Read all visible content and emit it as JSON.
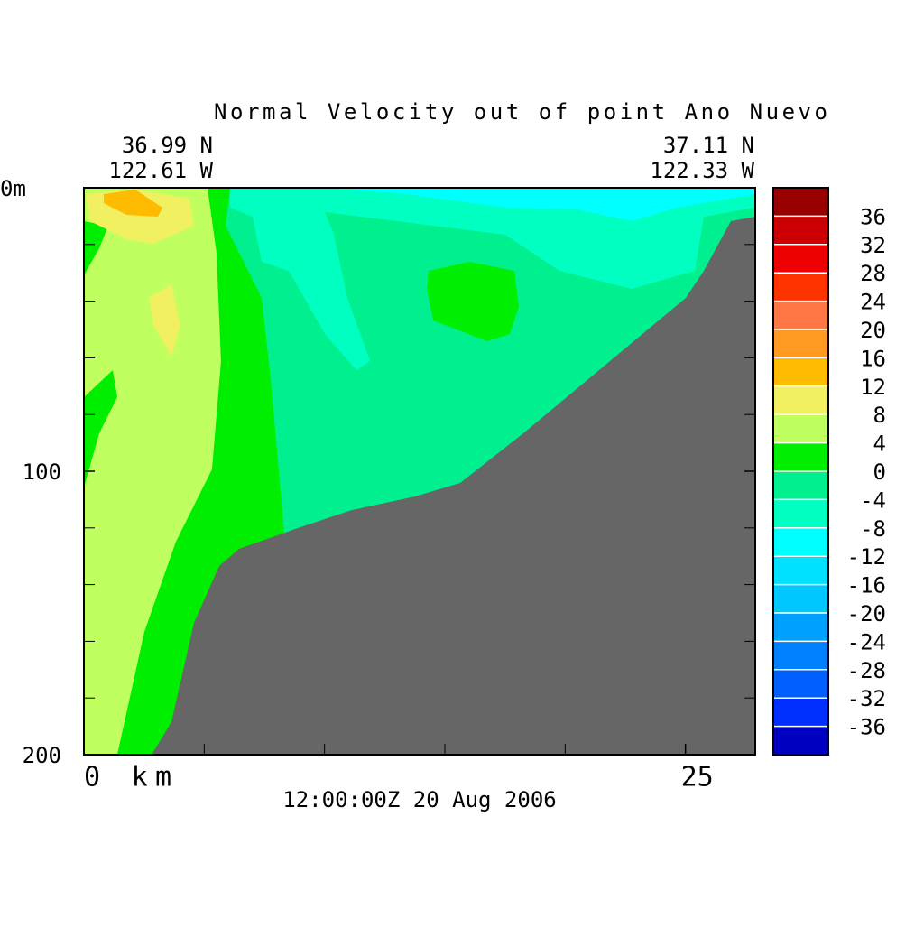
{
  "chart_data": {
    "type": "contour",
    "title": "Normal Velocity out of point Ano Nuevo",
    "subtitle": "12:00:00Z  20 Aug 2006",
    "left_corner": [
      "36.99 N",
      "122.61 W"
    ],
    "right_corner": [
      "37.11 N",
      "122.33 W"
    ],
    "xlim": [
      0,
      27.9
    ],
    "xticks": [
      {
        "value": 0,
        "label": "0 km"
      },
      25
    ],
    "xminorticks": [
      5,
      10,
      15,
      20
    ],
    "ylim": [
      0,
      200
    ],
    "yticks": [
      {
        "value": 0,
        "label": "0m"
      },
      100,
      200
    ],
    "yminorticks": [
      20,
      40,
      60,
      80,
      120,
      140,
      160,
      180
    ],
    "terrain_color": "#666666",
    "colorbar": {
      "colors": [
        "#9b0000",
        "#cc0000",
        "#ee0000",
        "#ff3300",
        "#ff7744",
        "#ff9922",
        "#ffbb00",
        "#f0f060",
        "#c0ff60",
        "#00ee00",
        "#00f090",
        "#00ffc0",
        "#00ffff",
        "#00e0ff",
        "#00c8ff",
        "#00a0ff",
        "#0080ff",
        "#0060ff",
        "#0030ff",
        "#0000c0"
      ],
      "ticks": [
        36,
        32,
        28,
        24,
        20,
        16,
        12,
        8,
        4,
        0,
        -4,
        -8,
        -12,
        -16,
        -20,
        -24,
        -28,
        -32,
        -36
      ]
    }
  }
}
